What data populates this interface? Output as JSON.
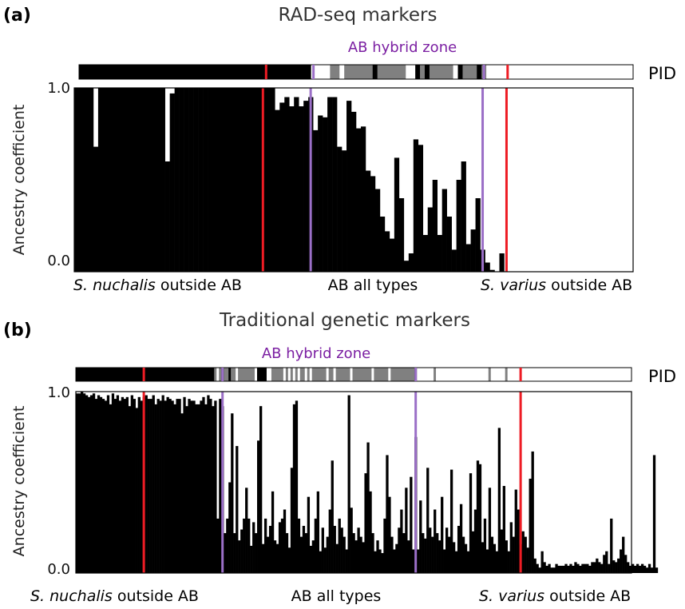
{
  "colors": {
    "bar": "#000000",
    "boundary_red": "#ee1c24",
    "boundary_purple": "#9b6fc7",
    "zone_label": "#7b1fa2",
    "pid_black": "#000000",
    "pid_grey": "#808080",
    "pid_white": "#ffffff"
  },
  "chart_data": [
    {
      "type": "bar",
      "panel": "(a)",
      "title": "RAD-seq markers",
      "zone_label": "AB hybrid zone",
      "pid_label": "PID",
      "ylabel": "Ancestry coefficient",
      "yticks": [
        "1.0",
        "0.0"
      ],
      "ylim": [
        0,
        1
      ],
      "group_labels": [
        {
          "italic": "S. nuchalis",
          "rest": " outside AB"
        },
        {
          "italic": "",
          "rest": "AB all types"
        },
        {
          "italic": "S. varius",
          "rest": " outside AB"
        }
      ],
      "n": 117,
      "red_lines": [
        39.5,
        90.5
      ],
      "purple_lines": [
        49.5,
        85.5
      ],
      "pid_segments": [
        {
          "from": 0,
          "to": 49,
          "color": "black"
        },
        {
          "from": 49,
          "to": 53,
          "color": "white"
        },
        {
          "from": 53,
          "to": 55,
          "color": "grey"
        },
        {
          "from": 55,
          "to": 56,
          "color": "white"
        },
        {
          "from": 56,
          "to": 62,
          "color": "grey"
        },
        {
          "from": 62,
          "to": 63,
          "color": "black"
        },
        {
          "from": 63,
          "to": 69,
          "color": "grey"
        },
        {
          "from": 69,
          "to": 71,
          "color": "white"
        },
        {
          "from": 71,
          "to": 72,
          "color": "black"
        },
        {
          "from": 72,
          "to": 73,
          "color": "grey"
        },
        {
          "from": 73,
          "to": 74,
          "color": "black"
        },
        {
          "from": 74,
          "to": 79,
          "color": "grey"
        },
        {
          "from": 79,
          "to": 80,
          "color": "white"
        },
        {
          "from": 80,
          "to": 81,
          "color": "black"
        },
        {
          "from": 81,
          "to": 84,
          "color": "grey"
        },
        {
          "from": 84,
          "to": 85,
          "color": "black"
        },
        {
          "from": 85,
          "to": 86,
          "color": "grey"
        },
        {
          "from": 86,
          "to": 117,
          "color": "white"
        }
      ],
      "values": [
        1.0,
        1.0,
        1.0,
        1.0,
        0.68,
        1.0,
        1.0,
        1.0,
        1.0,
        1.0,
        1.0,
        1.0,
        1.0,
        1.0,
        1.0,
        1.0,
        1.0,
        1.0,
        1.0,
        0.6,
        0.97,
        1.0,
        1.0,
        1.0,
        1.0,
        1.0,
        1.0,
        1.0,
        1.0,
        1.0,
        1.0,
        1.0,
        1.0,
        1.0,
        1.0,
        1.0,
        1.0,
        1.0,
        1.0,
        1.0,
        1.0,
        1.0,
        0.88,
        0.92,
        0.95,
        0.9,
        0.95,
        0.9,
        0.93,
        0.95,
        0.77,
        0.85,
        0.84,
        0.95,
        0.95,
        0.68,
        0.66,
        0.93,
        0.87,
        0.78,
        0.79,
        0.55,
        0.52,
        0.45,
        0.3,
        0.22,
        0.18,
        0.62,
        0.4,
        0.06,
        0.1,
        0.72,
        0.69,
        0.2,
        0.35,
        0.5,
        0.2,
        0.45,
        0.3,
        0.12,
        0.5,
        0.6,
        0.15,
        0.23,
        0.4,
        0.12,
        0.05,
        0.01,
        0.0,
        0.1,
        0.0,
        0.0,
        0.0,
        0.0,
        0.0,
        0.0,
        0.0,
        0.0,
        0.0,
        0.0,
        0.0,
        0.0,
        0.0,
        0.0,
        0.0,
        0.0,
        0.0,
        0.0,
        0.0,
        0.0,
        0.0,
        0.0,
        0.0,
        0.0,
        0.0,
        0.0,
        0.0
      ]
    },
    {
      "type": "bar",
      "panel": "(b)",
      "title": "Traditional genetic markers",
      "zone_label": "AB hybrid zone",
      "pid_label": "PID",
      "ylabel": "Ancestry coefficient",
      "yticks": [
        "1.0",
        "0.0"
      ],
      "ylim": [
        0,
        1
      ],
      "group_labels": [
        {
          "italic": "S. nuchalis",
          "rest": " outside AB"
        },
        {
          "italic": "",
          "rest": "AB all types"
        },
        {
          "italic": "S. varius",
          "rest": " outside AB"
        }
      ],
      "n": 233,
      "red_lines": [
        28.5,
        186.5
      ],
      "purple_lines": [
        61.5,
        142.5
      ],
      "pid_segments": [
        {
          "from": 0,
          "to": 58,
          "color": "black"
        },
        {
          "from": 58,
          "to": 59,
          "color": "grey"
        },
        {
          "from": 59,
          "to": 60,
          "color": "white"
        },
        {
          "from": 60,
          "to": 61,
          "color": "grey"
        },
        {
          "from": 61,
          "to": 62,
          "color": "black"
        },
        {
          "from": 62,
          "to": 64,
          "color": "grey"
        },
        {
          "from": 64,
          "to": 65,
          "color": "black"
        },
        {
          "from": 65,
          "to": 67,
          "color": "grey"
        },
        {
          "from": 67,
          "to": 68,
          "color": "white"
        },
        {
          "from": 68,
          "to": 75,
          "color": "grey"
        },
        {
          "from": 75,
          "to": 76,
          "color": "white"
        },
        {
          "from": 76,
          "to": 80,
          "color": "black"
        },
        {
          "from": 80,
          "to": 82,
          "color": "white"
        },
        {
          "from": 82,
          "to": 87,
          "color": "grey"
        },
        {
          "from": 87,
          "to": 88,
          "color": "white"
        },
        {
          "from": 88,
          "to": 89,
          "color": "grey"
        },
        {
          "from": 89,
          "to": 90,
          "color": "white"
        },
        {
          "from": 90,
          "to": 91,
          "color": "grey"
        },
        {
          "from": 91,
          "to": 92,
          "color": "white"
        },
        {
          "from": 92,
          "to": 93,
          "color": "grey"
        },
        {
          "from": 93,
          "to": 94,
          "color": "white"
        },
        {
          "from": 94,
          "to": 96,
          "color": "grey"
        },
        {
          "from": 96,
          "to": 97,
          "color": "white"
        },
        {
          "from": 97,
          "to": 98,
          "color": "grey"
        },
        {
          "from": 98,
          "to": 99,
          "color": "white"
        },
        {
          "from": 99,
          "to": 105,
          "color": "grey"
        },
        {
          "from": 105,
          "to": 106,
          "color": "white"
        },
        {
          "from": 106,
          "to": 108,
          "color": "grey"
        },
        {
          "from": 108,
          "to": 109,
          "color": "white"
        },
        {
          "from": 109,
          "to": 115,
          "color": "grey"
        },
        {
          "from": 115,
          "to": 116,
          "color": "white"
        },
        {
          "from": 116,
          "to": 124,
          "color": "grey"
        },
        {
          "from": 124,
          "to": 125,
          "color": "white"
        },
        {
          "from": 125,
          "to": 131,
          "color": "grey"
        },
        {
          "from": 131,
          "to": 132,
          "color": "white"
        },
        {
          "from": 132,
          "to": 142,
          "color": "grey"
        },
        {
          "from": 142,
          "to": 143,
          "color": "black"
        },
        {
          "from": 143,
          "to": 150,
          "color": "white"
        },
        {
          "from": 150,
          "to": 151,
          "color": "grey"
        },
        {
          "from": 151,
          "to": 173,
          "color": "white"
        },
        {
          "from": 173,
          "to": 174,
          "color": "grey"
        },
        {
          "from": 174,
          "to": 180,
          "color": "white"
        },
        {
          "from": 180,
          "to": 181,
          "color": "grey"
        },
        {
          "from": 181,
          "to": 233,
          "color": "white"
        }
      ],
      "values": [
        0.99,
        0.99,
        1.0,
        0.99,
        0.98,
        0.97,
        0.98,
        0.99,
        0.96,
        0.98,
        0.97,
        0.96,
        0.95,
        0.98,
        0.93,
        0.99,
        0.96,
        0.98,
        0.95,
        0.97,
        0.96,
        0.97,
        0.92,
        0.98,
        0.96,
        0.91,
        0.97,
        0.95,
        0.97,
        0.98,
        0.96,
        0.96,
        0.98,
        0.93,
        0.96,
        0.95,
        0.98,
        0.95,
        0.97,
        0.96,
        0.95,
        0.93,
        0.96,
        0.96,
        0.88,
        0.97,
        0.92,
        0.96,
        0.95,
        0.95,
        0.93,
        0.93,
        0.95,
        0.97,
        0.93,
        0.98,
        0.96,
        0.92,
        0.95,
        0.3,
        0.96,
        0.92,
        0.22,
        0.3,
        0.5,
        0.88,
        0.22,
        0.7,
        0.18,
        0.24,
        0.3,
        0.47,
        0.3,
        0.15,
        0.28,
        0.22,
        0.73,
        0.92,
        0.16,
        0.3,
        0.2,
        0.26,
        0.45,
        0.18,
        0.16,
        0.28,
        0.3,
        0.35,
        0.22,
        0.14,
        0.58,
        0.93,
        0.95,
        0.3,
        0.2,
        0.26,
        0.22,
        0.42,
        0.15,
        0.18,
        0.3,
        0.45,
        0.12,
        0.25,
        0.14,
        0.2,
        0.35,
        0.62,
        0.26,
        0.16,
        0.3,
        0.25,
        0.2,
        0.13,
        0.98,
        0.36,
        0.22,
        0.18,
        0.25,
        0.2,
        0.17,
        0.55,
        0.72,
        0.45,
        0.22,
        0.12,
        0.18,
        0.13,
        0.11,
        0.3,
        0.65,
        0.42,
        0.2,
        0.13,
        0.16,
        0.25,
        0.35,
        0.22,
        0.47,
        0.18,
        0.53,
        0.13,
        0.75,
        0.13,
        0.4,
        0.22,
        0.19,
        0.58,
        0.25,
        0.2,
        0.35,
        0.22,
        0.18,
        0.42,
        0.13,
        0.25,
        0.2,
        0.57,
        0.17,
        0.12,
        0.26,
        0.38,
        0.2,
        0.16,
        0.12,
        0.55,
        0.23,
        0.35,
        0.62,
        0.6,
        0.17,
        0.3,
        0.13,
        0.47,
        0.2,
        0.16,
        0.12,
        0.8,
        0.24,
        0.48,
        0.18,
        0.12,
        0.28,
        0.2,
        0.46,
        0.35,
        0.16,
        0.23,
        0.2,
        0.14,
        0.52,
        0.67,
        0.08,
        0.05,
        0.03,
        0.12,
        0.06,
        0.04,
        0.05,
        0.03,
        0.03,
        0.05,
        0.04,
        0.04,
        0.04,
        0.05,
        0.04,
        0.05,
        0.04,
        0.06,
        0.05,
        0.04,
        0.05,
        0.05,
        0.05,
        0.04,
        0.06,
        0.06,
        0.08,
        0.06,
        0.05,
        0.1,
        0.12,
        0.05,
        0.3,
        0.07,
        0.06,
        0.08,
        0.13,
        0.2,
        0.1,
        0.06,
        0.04,
        0.05,
        0.04,
        0.05,
        0.04,
        0.05,
        0.04,
        0.03,
        0.05,
        0.03,
        0.65,
        0.03
      ]
    }
  ]
}
